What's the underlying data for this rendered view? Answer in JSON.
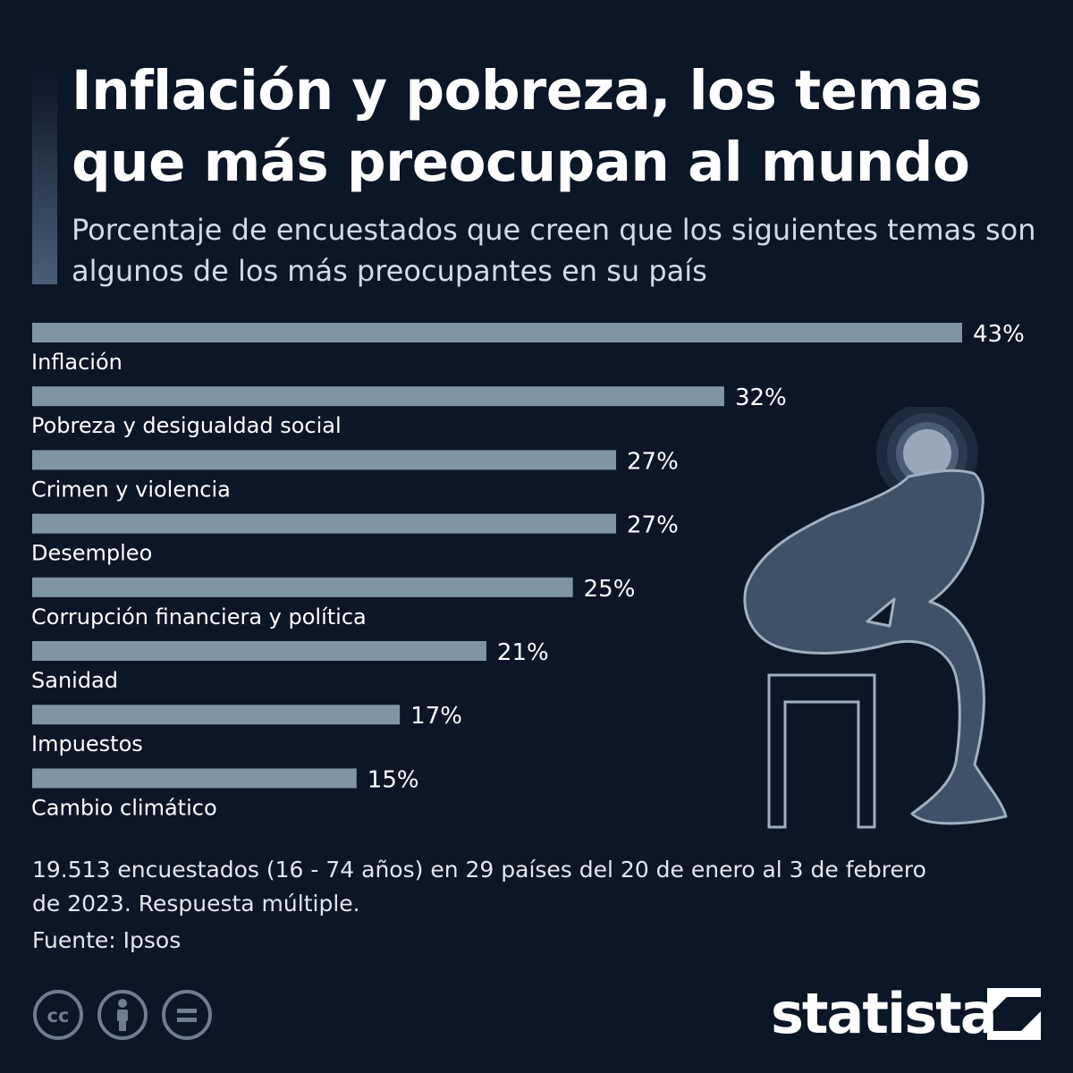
{
  "title": "Inflación y pobreza, los temas que más preocupan al mundo",
  "subtitle": "Porcentaje de encuestados que creen que los siguientes temas son algunos de los más preocupantes en su país",
  "note": "19.513 encuestados (16 - 74 años) en 29 países del 20 de enero al 3 de febrero de 2023. Respuesta múltiple.",
  "source": "Fuente: Ipsos",
  "brand": "statista",
  "icons": [
    "creative-commons-icon",
    "attribution-icon",
    "no-derivatives-icon",
    "statista-logo-mark",
    "worried-person-illustration"
  ],
  "colors": {
    "background": "#0b1627",
    "bar": "#7f95a6",
    "text": "#ffffff",
    "figure": "#3e5166"
  },
  "chart_data": {
    "type": "bar",
    "orientation": "horizontal",
    "categories": [
      "Inflación",
      "Pobreza y desigualdad social",
      "Crimen y violencia",
      "Desempleo",
      "Corrupción financiera y política",
      "Sanidad",
      "Impuestos",
      "Cambio climático"
    ],
    "values": [
      43,
      32,
      27,
      27,
      25,
      21,
      17,
      15
    ],
    "value_labels": [
      "43%",
      "32%",
      "27%",
      "27%",
      "25%",
      "21%",
      "17%",
      "15%"
    ],
    "unit": "%",
    "xlim": [
      0,
      43
    ],
    "grid": false,
    "legend": "none"
  }
}
